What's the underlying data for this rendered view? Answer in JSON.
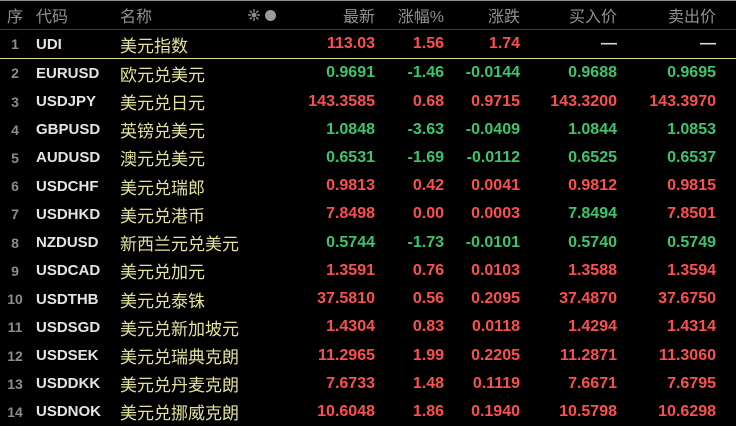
{
  "colors": {
    "background": "#000000",
    "topline": "#8f8f8f",
    "header": "#909090",
    "seq": "#8c8c8c",
    "code": "#e4e4e4",
    "name": "#e2e29e",
    "up": "#fa5050",
    "down": "#3cc46e",
    "flat": "#d9d9d9",
    "divider": "#e3e38c",
    "icon": "#8c8c8c"
  },
  "table": {
    "columns": {
      "seq": "序",
      "code": "代码",
      "name": "名称",
      "latest": "最新",
      "pct": "涨幅%",
      "chg": "涨跌",
      "bid": "买入价",
      "ask": "卖出价"
    },
    "header_icons": [
      "sun-icon",
      "circle-icon"
    ],
    "rows": [
      {
        "seq": "1",
        "code": "UDI",
        "name": "美元指数",
        "latest": "113.03",
        "pct": "1.56",
        "chg": "1.74",
        "bid": "—",
        "ask": "—",
        "cell_colors": [
          "up",
          "up",
          "up",
          "flat",
          "flat"
        ],
        "divider": true
      },
      {
        "seq": "2",
        "code": "EURUSD",
        "name": "欧元兑美元",
        "latest": "0.9691",
        "pct": "-1.46",
        "chg": "-0.0144",
        "bid": "0.9688",
        "ask": "0.9695",
        "cell_colors": [
          "down",
          "down",
          "down",
          "down",
          "down"
        ]
      },
      {
        "seq": "3",
        "code": "USDJPY",
        "name": "美元兑日元",
        "latest": "143.3585",
        "pct": "0.68",
        "chg": "0.9715",
        "bid": "143.3200",
        "ask": "143.3970",
        "cell_colors": [
          "up",
          "up",
          "up",
          "up",
          "up"
        ]
      },
      {
        "seq": "4",
        "code": "GBPUSD",
        "name": "英镑兑美元",
        "latest": "1.0848",
        "pct": "-3.63",
        "chg": "-0.0409",
        "bid": "1.0844",
        "ask": "1.0853",
        "cell_colors": [
          "down",
          "down",
          "down",
          "down",
          "down"
        ]
      },
      {
        "seq": "5",
        "code": "AUDUSD",
        "name": "澳元兑美元",
        "latest": "0.6531",
        "pct": "-1.69",
        "chg": "-0.0112",
        "bid": "0.6525",
        "ask": "0.6537",
        "cell_colors": [
          "down",
          "down",
          "down",
          "down",
          "down"
        ]
      },
      {
        "seq": "6",
        "code": "USDCHF",
        "name": "美元兑瑞郎",
        "latest": "0.9813",
        "pct": "0.42",
        "chg": "0.0041",
        "bid": "0.9812",
        "ask": "0.9815",
        "cell_colors": [
          "up",
          "up",
          "up",
          "up",
          "up"
        ]
      },
      {
        "seq": "7",
        "code": "USDHKD",
        "name": "美元兑港币",
        "latest": "7.8498",
        "pct": "0.00",
        "chg": "0.0003",
        "bid": "7.8494",
        "ask": "7.8501",
        "cell_colors": [
          "up",
          "up",
          "up",
          "down",
          "up"
        ]
      },
      {
        "seq": "8",
        "code": "NZDUSD",
        "name": "新西兰元兑美元",
        "latest": "0.5744",
        "pct": "-1.73",
        "chg": "-0.0101",
        "bid": "0.5740",
        "ask": "0.5749",
        "cell_colors": [
          "down",
          "down",
          "down",
          "down",
          "down"
        ]
      },
      {
        "seq": "9",
        "code": "USDCAD",
        "name": "美元兑加元",
        "latest": "1.3591",
        "pct": "0.76",
        "chg": "0.0103",
        "bid": "1.3588",
        "ask": "1.3594",
        "cell_colors": [
          "up",
          "up",
          "up",
          "up",
          "up"
        ]
      },
      {
        "seq": "10",
        "code": "USDTHB",
        "name": "美元兑泰铢",
        "latest": "37.5810",
        "pct": "0.56",
        "chg": "0.2095",
        "bid": "37.4870",
        "ask": "37.6750",
        "cell_colors": [
          "up",
          "up",
          "up",
          "up",
          "up"
        ]
      },
      {
        "seq": "11",
        "code": "USDSGD",
        "name": "美元兑新加坡元",
        "latest": "1.4304",
        "pct": "0.83",
        "chg": "0.0118",
        "bid": "1.4294",
        "ask": "1.4314",
        "cell_colors": [
          "up",
          "up",
          "up",
          "up",
          "up"
        ]
      },
      {
        "seq": "12",
        "code": "USDSEK",
        "name": "美元兑瑞典克朗",
        "latest": "11.2965",
        "pct": "1.99",
        "chg": "0.2205",
        "bid": "11.2871",
        "ask": "11.3060",
        "cell_colors": [
          "up",
          "up",
          "up",
          "up",
          "up"
        ]
      },
      {
        "seq": "13",
        "code": "USDDKK",
        "name": "美元兑丹麦克朗",
        "latest": "7.6733",
        "pct": "1.48",
        "chg": "0.1119",
        "bid": "7.6671",
        "ask": "7.6795",
        "cell_colors": [
          "up",
          "up",
          "up",
          "up",
          "up"
        ]
      },
      {
        "seq": "14",
        "code": "USDNOK",
        "name": "美元兑挪威克朗",
        "latest": "10.6048",
        "pct": "1.86",
        "chg": "0.1940",
        "bid": "10.5798",
        "ask": "10.6298",
        "cell_colors": [
          "up",
          "up",
          "up",
          "up",
          "up"
        ]
      }
    ]
  }
}
